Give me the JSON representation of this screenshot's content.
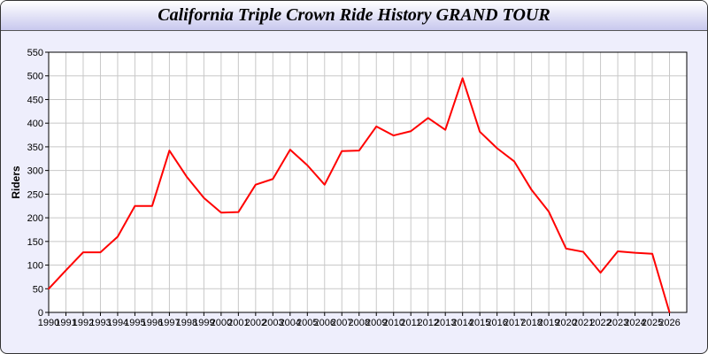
{
  "chart_data": {
    "type": "line",
    "title": "California Triple Crown Ride History GRAND TOUR",
    "xlabel": "",
    "ylabel": "Riders",
    "ylim": [
      0,
      550
    ],
    "yticks": [
      0,
      50,
      100,
      150,
      200,
      250,
      300,
      350,
      400,
      450,
      500,
      550
    ],
    "xlim": [
      1990,
      2027
    ],
    "grid": true,
    "line_color": "#ff0000",
    "x": [
      1990,
      1991,
      1992,
      1993,
      1994,
      1995,
      1996,
      1997,
      1998,
      1999,
      2000,
      2001,
      2002,
      2003,
      2004,
      2005,
      2006,
      2007,
      2008,
      2009,
      2010,
      2011,
      2012,
      2013,
      2014,
      2015,
      2016,
      2017,
      2018,
      2019,
      2020,
      2021,
      2022,
      2023,
      2024,
      2025,
      2026
    ],
    "series": [
      {
        "values": [
          50,
          89,
          127,
          127,
          160,
          225,
          225,
          342,
          287,
          242,
          211,
          212,
          270,
          282,
          344,
          311,
          270,
          341,
          342,
          393,
          374,
          383,
          411,
          386,
          495,
          382,
          347,
          319,
          259,
          213,
          135,
          128,
          84,
          129,
          126,
          124,
          0
        ]
      }
    ]
  }
}
